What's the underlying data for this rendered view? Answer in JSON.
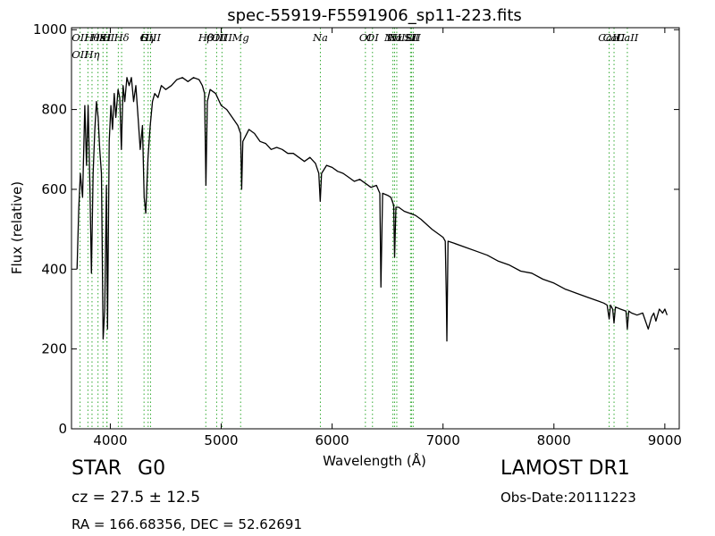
{
  "chart_data": {
    "type": "line",
    "title": "spec-55919-F5591906_sp11-223.fits",
    "xlabel": "Wavelength (Å)",
    "ylabel": "Flux (relative)",
    "xlim": [
      3650,
      9130
    ],
    "ylim": [
      0,
      1005
    ],
    "xticks": [
      4000,
      5000,
      6000,
      7000,
      8000,
      9000
    ],
    "yticks": [
      0,
      200,
      400,
      600,
      800,
      1000
    ],
    "grid": false,
    "series": [
      {
        "name": "",
        "color": "#000000",
        "points": [
          [
            3700,
            400
          ],
          [
            3715,
            550
          ],
          [
            3730,
            640
          ],
          [
            3750,
            580
          ],
          [
            3770,
            810
          ],
          [
            3785,
            660
          ],
          [
            3800,
            810
          ],
          [
            3815,
            620
          ],
          [
            3830,
            390
          ],
          [
            3845,
            640
          ],
          [
            3860,
            750
          ],
          [
            3875,
            820
          ],
          [
            3890,
            780
          ],
          [
            3905,
            700
          ],
          [
            3920,
            640
          ],
          [
            3935,
            225
          ],
          [
            3950,
            300
          ],
          [
            3965,
            610
          ],
          [
            3975,
            250
          ],
          [
            3990,
            720
          ],
          [
            4005,
            810
          ],
          [
            4020,
            750
          ],
          [
            4035,
            840
          ],
          [
            4050,
            780
          ],
          [
            4070,
            850
          ],
          [
            4085,
            830
          ],
          [
            4100,
            700
          ],
          [
            4115,
            860
          ],
          [
            4130,
            820
          ],
          [
            4150,
            880
          ],
          [
            4170,
            860
          ],
          [
            4190,
            880
          ],
          [
            4210,
            820
          ],
          [
            4230,
            860
          ],
          [
            4250,
            780
          ],
          [
            4270,
            700
          ],
          [
            4290,
            760
          ],
          [
            4305,
            580
          ],
          [
            4320,
            540
          ],
          [
            4340,
            680
          ],
          [
            4360,
            760
          ],
          [
            4380,
            820
          ],
          [
            4400,
            840
          ],
          [
            4430,
            830
          ],
          [
            4460,
            860
          ],
          [
            4500,
            850
          ],
          [
            4550,
            860
          ],
          [
            4600,
            875
          ],
          [
            4650,
            880
          ],
          [
            4700,
            870
          ],
          [
            4750,
            880
          ],
          [
            4800,
            875
          ],
          [
            4830,
            860
          ],
          [
            4850,
            840
          ],
          [
            4862,
            610
          ],
          [
            4875,
            820
          ],
          [
            4900,
            850
          ],
          [
            4950,
            840
          ],
          [
            5000,
            810
          ],
          [
            5050,
            800
          ],
          [
            5100,
            780
          ],
          [
            5150,
            760
          ],
          [
            5175,
            740
          ],
          [
            5184,
            600
          ],
          [
            5195,
            720
          ],
          [
            5250,
            750
          ],
          [
            5300,
            740
          ],
          [
            5350,
            720
          ],
          [
            5400,
            715
          ],
          [
            5450,
            700
          ],
          [
            5500,
            705
          ],
          [
            5550,
            700
          ],
          [
            5600,
            690
          ],
          [
            5650,
            690
          ],
          [
            5700,
            680
          ],
          [
            5750,
            670
          ],
          [
            5800,
            680
          ],
          [
            5850,
            665
          ],
          [
            5880,
            640
          ],
          [
            5893,
            570
          ],
          [
            5905,
            640
          ],
          [
            5950,
            660
          ],
          [
            6000,
            655
          ],
          [
            6050,
            645
          ],
          [
            6100,
            640
          ],
          [
            6150,
            630
          ],
          [
            6200,
            620
          ],
          [
            6250,
            625
          ],
          [
            6300,
            615
          ],
          [
            6350,
            605
          ],
          [
            6400,
            610
          ],
          [
            6430,
            590
          ],
          [
            6440,
            355
          ],
          [
            6455,
            590
          ],
          [
            6500,
            585
          ],
          [
            6530,
            580
          ],
          [
            6555,
            560
          ],
          [
            6563,
            430
          ],
          [
            6575,
            555
          ],
          [
            6600,
            555
          ],
          [
            6650,
            545
          ],
          [
            6700,
            540
          ],
          [
            6750,
            535
          ],
          [
            6800,
            525
          ],
          [
            6900,
            500
          ],
          [
            6950,
            490
          ],
          [
            7000,
            480
          ],
          [
            7020,
            470
          ],
          [
            7030,
            330
          ],
          [
            7035,
            220
          ],
          [
            7045,
            470
          ],
          [
            7100,
            465
          ],
          [
            7200,
            455
          ],
          [
            7300,
            445
          ],
          [
            7400,
            435
          ],
          [
            7500,
            420
          ],
          [
            7600,
            410
          ],
          [
            7700,
            395
          ],
          [
            7800,
            390
          ],
          [
            7900,
            375
          ],
          [
            8000,
            365
          ],
          [
            8100,
            350
          ],
          [
            8200,
            340
          ],
          [
            8300,
            330
          ],
          [
            8400,
            320
          ],
          [
            8450,
            315
          ],
          [
            8480,
            310
          ],
          [
            8498,
            275
          ],
          [
            8510,
            310
          ],
          [
            8530,
            300
          ],
          [
            8542,
            265
          ],
          [
            8555,
            305
          ],
          [
            8600,
            300
          ],
          [
            8650,
            295
          ],
          [
            8662,
            250
          ],
          [
            8675,
            295
          ],
          [
            8700,
            290
          ],
          [
            8750,
            285
          ],
          [
            8800,
            290
          ],
          [
            8850,
            250
          ],
          [
            8880,
            280
          ],
          [
            8900,
            290
          ],
          [
            8920,
            270
          ],
          [
            8950,
            300
          ],
          [
            8980,
            290
          ],
          [
            9000,
            300
          ],
          [
            9020,
            285
          ]
        ]
      }
    ],
    "line_markers": [
      {
        "wavelength": 3727,
        "labels": [
          "OII",
          "OII"
        ]
      },
      {
        "wavelength": 3798,
        "labels": [
          ""
        ]
      },
      {
        "wavelength": 3835,
        "labels": [
          "Hθ",
          "Hη"
        ]
      },
      {
        "wavelength": 3889,
        "labels": [
          "Hε"
        ]
      },
      {
        "wavelength": 3934,
        "labels": [
          "K"
        ]
      },
      {
        "wavelength": 3969,
        "labels": [
          "H"
        ]
      },
      {
        "wavelength": 3970,
        "labels": [
          "SII"
        ]
      },
      {
        "wavelength": 4072,
        "labels": [
          ""
        ]
      },
      {
        "wavelength": 4102,
        "labels": [
          "Hδ"
        ]
      },
      {
        "wavelength": 4304,
        "labels": [
          "G"
        ]
      },
      {
        "wavelength": 4341,
        "labels": [
          "Hγ"
        ]
      },
      {
        "wavelength": 4363,
        "labels": [
          "OIII"
        ]
      },
      {
        "wavelength": 4861,
        "labels": [
          "Hβ"
        ]
      },
      {
        "wavelength": 4959,
        "labels": [
          "OIII"
        ]
      },
      {
        "wavelength": 5007,
        "labels": [
          "OIII"
        ]
      },
      {
        "wavelength": 5175,
        "labels": [
          "Mg"
        ]
      },
      {
        "wavelength": 5894,
        "labels": [
          "Na"
        ]
      },
      {
        "wavelength": 6300,
        "labels": [
          "OI"
        ]
      },
      {
        "wavelength": 6364,
        "labels": [
          "OI"
        ]
      },
      {
        "wavelength": 6548,
        "labels": [
          "NII"
        ]
      },
      {
        "wavelength": 6563,
        "labels": [
          "Hα"
        ]
      },
      {
        "wavelength": 6583,
        "labels": [
          "NII"
        ]
      },
      {
        "wavelength": 6707,
        "labels": [
          "Li"
        ]
      },
      {
        "wavelength": 6716,
        "labels": [
          "SII"
        ]
      },
      {
        "wavelength": 6731,
        "labels": [
          "SII"
        ]
      },
      {
        "wavelength": 8498,
        "labels": [
          "CaII"
        ]
      },
      {
        "wavelength": 8542,
        "labels": [
          "CaII"
        ]
      },
      {
        "wavelength": 8662,
        "labels": [
          "CaII"
        ]
      }
    ]
  },
  "info": {
    "object_class": "STAR",
    "subclass": "G0",
    "redshift": "cz = 27.5  ± 12.5",
    "coords": "RA = 166.68356, DEC = 52.62691",
    "survey": "LAMOST DR1",
    "obs_date": "Obs-Date:20111223"
  },
  "colors": {
    "spectrum": "#000000",
    "line_marker": "#33aa33",
    "background": "#ffffff"
  }
}
